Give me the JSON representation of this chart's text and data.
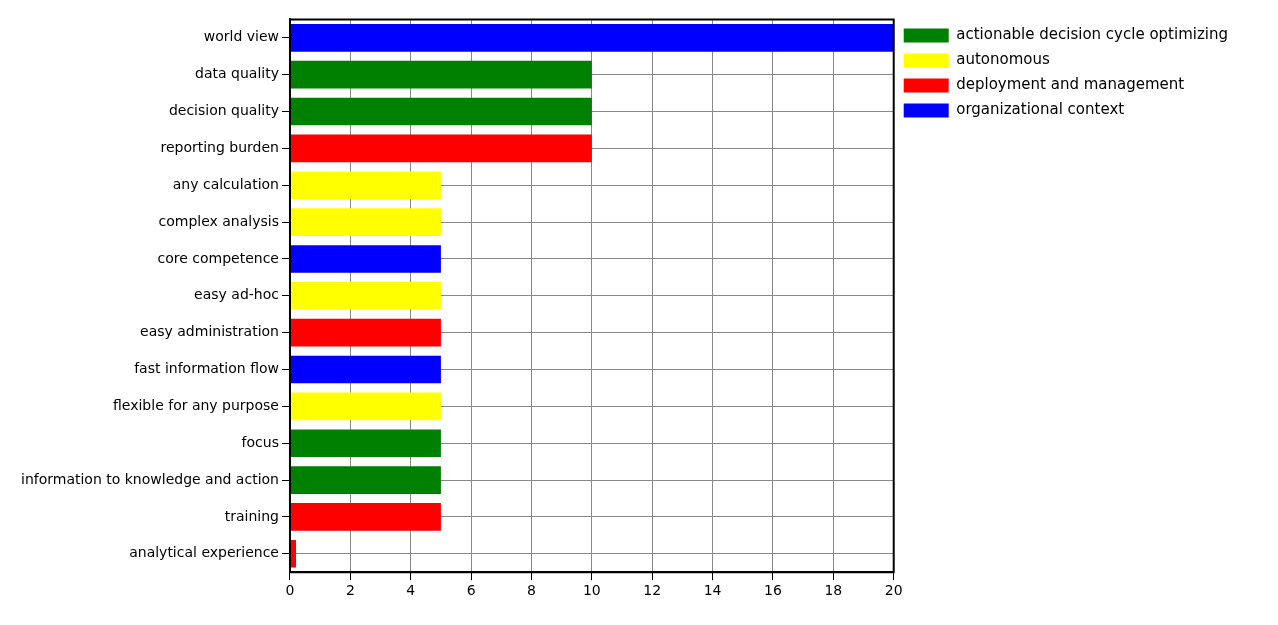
{
  "chart_data": {
    "type": "bar",
    "orientation": "horizontal",
    "categories": [
      "world view",
      "data quality",
      "decision quality",
      "reporting burden",
      "any calculation",
      "complex analysis",
      "core competence",
      "easy ad-hoc",
      "easy administration",
      "fast information flow",
      "flexible for any purpose",
      "focus",
      "information to knowledge and action",
      "training",
      "analytical experience"
    ],
    "series": [
      {
        "name": "actionable decision cycle optimizing",
        "color": "#008000",
        "values": [
          null,
          10,
          10,
          null,
          null,
          null,
          null,
          null,
          null,
          null,
          null,
          5,
          5,
          null,
          null
        ]
      },
      {
        "name": "autonomous",
        "color": "#ffff00",
        "values": [
          null,
          null,
          null,
          null,
          5,
          5,
          null,
          5,
          null,
          null,
          5,
          null,
          null,
          null,
          null
        ]
      },
      {
        "name": "deployment and management",
        "color": "#ff0000",
        "values": [
          null,
          null,
          null,
          10,
          null,
          null,
          null,
          null,
          5,
          null,
          null,
          null,
          null,
          5,
          0.2
        ]
      },
      {
        "name": "organizational context",
        "color": "#0000ff",
        "values": [
          20,
          null,
          null,
          null,
          null,
          null,
          5,
          null,
          null,
          5,
          null,
          null,
          null,
          null,
          null
        ]
      }
    ],
    "xlim": [
      0,
      20
    ],
    "xticks": [
      0,
      2,
      4,
      6,
      8,
      10,
      12,
      14,
      16,
      18,
      20
    ],
    "grid": true,
    "legend": "top right"
  }
}
